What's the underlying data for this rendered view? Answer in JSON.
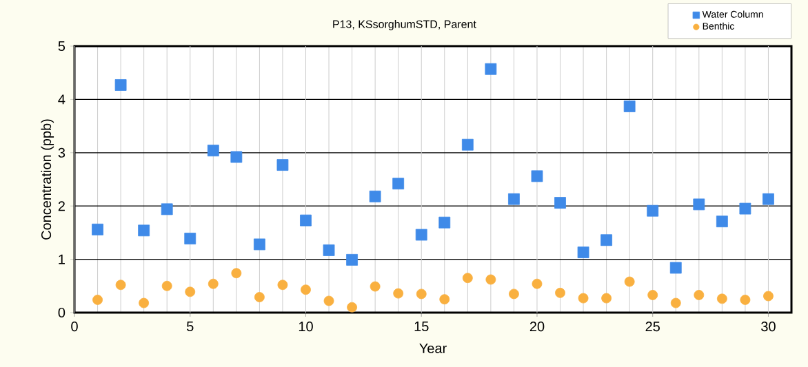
{
  "chart_data": {
    "type": "scatter",
    "title": "P13, KSsorghumSTD,  Parent",
    "xlabel": "Year",
    "ylabel": "Concentration (ppb)",
    "x": [
      1,
      2,
      3,
      4,
      5,
      6,
      7,
      8,
      9,
      10,
      11,
      12,
      13,
      14,
      15,
      16,
      17,
      18,
      19,
      20,
      21,
      22,
      23,
      24,
      25,
      26,
      27,
      28,
      29,
      30
    ],
    "series": [
      {
        "name": "Water Column",
        "color": "#3f8ae8",
        "marker": "square",
        "values": [
          1.56,
          4.27,
          1.54,
          1.94,
          1.39,
          3.04,
          2.92,
          1.28,
          2.77,
          1.73,
          1.17,
          0.99,
          2.18,
          2.42,
          1.46,
          1.69,
          3.15,
          4.57,
          2.13,
          2.56,
          2.06,
          1.13,
          1.36,
          3.87,
          1.91,
          0.84,
          2.03,
          1.71,
          1.95,
          2.13
        ]
      },
      {
        "name": "Benthic",
        "color": "#f9b040",
        "marker": "circle",
        "values": [
          0.24,
          0.52,
          0.18,
          0.5,
          0.39,
          0.54,
          0.74,
          0.29,
          0.52,
          0.43,
          0.22,
          0.1,
          0.49,
          0.36,
          0.35,
          0.25,
          0.65,
          0.62,
          0.35,
          0.54,
          0.37,
          0.27,
          0.27,
          0.58,
          0.33,
          0.18,
          0.33,
          0.26,
          0.24,
          0.31
        ]
      }
    ],
    "xlim": [
      0,
      31
    ],
    "ylim": [
      0,
      5
    ],
    "xticks": [
      0,
      5,
      10,
      15,
      20,
      25,
      30
    ],
    "yticks": [
      0,
      1,
      2,
      3,
      4,
      5
    ],
    "grid": true,
    "legend": "top right"
  }
}
